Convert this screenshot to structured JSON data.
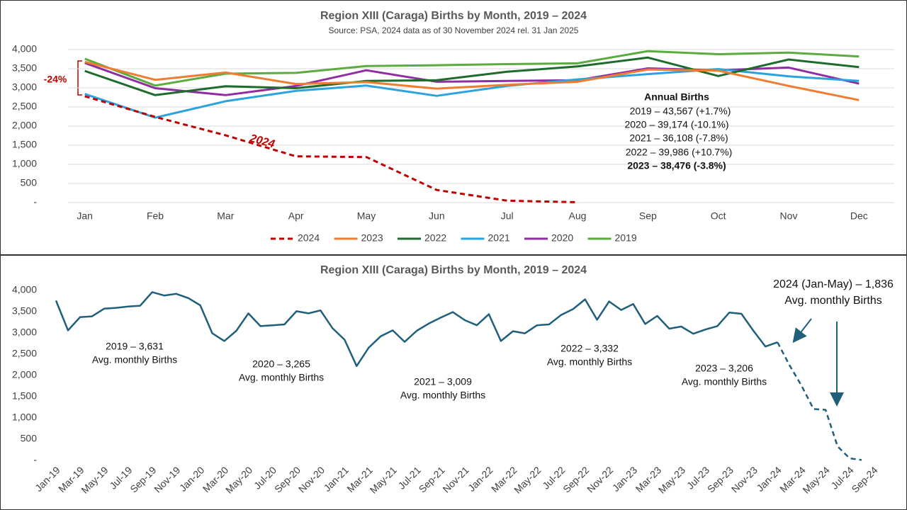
{
  "chart_data": [
    {
      "type": "line",
      "title": "Region XIII (Caraga) Births by Month, 2019 – 2024",
      "subtitle": "Source: PSA, 2024 data as of 30 November 2024 rel. 31 Jan 2025",
      "categories": [
        "Jan",
        "Feb",
        "Mar",
        "Apr",
        "May",
        "Jun",
        "Jul",
        "Aug",
        "Sep",
        "Oct",
        "Nov",
        "Dec"
      ],
      "ylim": [
        0,
        4000
      ],
      "yticks": [
        {
          "value": 0,
          "label": "-"
        },
        500,
        {
          "value": 1000,
          "label": "1,000"
        },
        {
          "value": 1500,
          "label": "1,500"
        },
        {
          "value": 2000,
          "label": "2,000"
        },
        {
          "value": 2500,
          "label": "2,500"
        },
        {
          "value": 3000,
          "label": "3,000"
        },
        {
          "value": 3500,
          "label": "3,500"
        },
        {
          "value": 4000,
          "label": "4,000"
        }
      ],
      "grid": true,
      "legend": "bottom",
      "series": [
        {
          "name": "2024",
          "color": "#c00000",
          "dashed": true,
          "values": [
            2780,
            2240,
            1760,
            1210,
            1190,
            330,
            50,
            10,
            null,
            null,
            null,
            null
          ]
        },
        {
          "name": "2023",
          "color": "#ed7d31",
          "values": [
            3680,
            3210,
            3400,
            3100,
            3150,
            2980,
            3080,
            3160,
            3480,
            3450,
            3050,
            2680
          ]
        },
        {
          "name": "2022",
          "color": "#1f6b2e",
          "values": [
            3440,
            2810,
            3040,
            2990,
            3180,
            3200,
            3420,
            3560,
            3790,
            3310,
            3740,
            3540
          ]
        },
        {
          "name": "2021",
          "color": "#2ba3dc",
          "values": [
            2840,
            2220,
            2650,
            2920,
            3060,
            2790,
            3050,
            3220,
            3360,
            3490,
            3300,
            3180
          ]
        },
        {
          "name": "2020",
          "color": "#8f2ea3",
          "values": [
            3650,
            2990,
            2810,
            3050,
            3460,
            3160,
            3180,
            3200,
            3510,
            3460,
            3530,
            3110
          ]
        },
        {
          "name": "2019",
          "color": "#5aac3e",
          "values": [
            3760,
            3060,
            3370,
            3390,
            3570,
            3590,
            3620,
            3640,
            3960,
            3880,
            3920,
            3820
          ]
        }
      ],
      "annotations": [
        "-24%",
        "2024",
        "Annual Births",
        "2019 – 43,567 (+1.7%)",
        "2020 – 39,174 (-10.1%)",
        "2021 – 36,108 (-7.8%)",
        "2022 – 39,986 (+10.7%)",
        "2023 – 38,476 (-3.8%)"
      ]
    },
    {
      "type": "line",
      "title": "Region XIII (Caraga) Births by Month, 2019 – 2024",
      "categories": [
        "Jan-19",
        null,
        "Mar-19",
        null,
        "May-19",
        null,
        "Jul-19",
        null,
        "Sep-19",
        null,
        "Nov-19",
        null,
        "Jan-20",
        null,
        "Mar-20",
        null,
        "May-20",
        null,
        "Jul-20",
        null,
        "Sep-20",
        null,
        "Nov-20",
        null,
        "Jan-21",
        null,
        "Mar-21",
        null,
        "May-21",
        null,
        "Jul-21",
        null,
        "Sep-21",
        null,
        "Nov-21",
        null,
        "Jan-22",
        null,
        "Mar-22",
        null,
        "May-22",
        null,
        "Jul-22",
        null,
        "Sep-22",
        null,
        "Nov-22",
        null,
        "Jan-23",
        null,
        "Mar-23",
        null,
        "May-23",
        null,
        "Jul-23",
        null,
        "Sep-23",
        null,
        "Nov-23",
        null,
        "Jan-24",
        null,
        "Mar-24",
        null,
        "May-24",
        null,
        "Jul-24",
        null,
        "Sep-24"
      ],
      "ylim": [
        0,
        4000
      ],
      "yticks": [
        {
          "value": 0,
          "label": "-"
        },
        500,
        {
          "value": 1000,
          "label": "1,000"
        },
        {
          "value": 1500,
          "label": "1,500"
        },
        {
          "value": 2000,
          "label": "2,000"
        },
        {
          "value": 2500,
          "label": "2,500"
        },
        {
          "value": 3000,
          "label": "3,000"
        },
        {
          "value": 3500,
          "label": "3,500"
        },
        {
          "value": 4000,
          "label": "4,000"
        }
      ],
      "grid": false,
      "series": [
        {
          "color": "#1f5f7a",
          "values": [
            3760,
            3060,
            3370,
            3390,
            3570,
            3590,
            3620,
            3640,
            3960,
            3880,
            3920,
            3820,
            3650,
            2990,
            2810,
            3050,
            3460,
            3160,
            3180,
            3200,
            3510,
            3460,
            3530,
            3110,
            2840,
            2220,
            2650,
            2920,
            3060,
            2790,
            3050,
            3220,
            3360,
            3490,
            3300,
            3180,
            3440,
            2810,
            3040,
            2990,
            3180,
            3200,
            3420,
            3560,
            3790,
            3310,
            3740,
            3540,
            3680,
            3210,
            3400,
            3100,
            3150,
            2980,
            3080,
            3160,
            3480,
            3450,
            3050,
            2680,
            2780,
            null,
            null,
            null,
            null,
            null,
            null,
            null,
            null
          ]
        },
        {
          "color": "#1f5f7a",
          "dashed": true,
          "values": [
            null,
            null,
            null,
            null,
            null,
            null,
            null,
            null,
            null,
            null,
            null,
            null,
            null,
            null,
            null,
            null,
            null,
            null,
            null,
            null,
            null,
            null,
            null,
            null,
            null,
            null,
            null,
            null,
            null,
            null,
            null,
            null,
            null,
            null,
            null,
            null,
            null,
            null,
            null,
            null,
            null,
            null,
            null,
            null,
            null,
            null,
            null,
            null,
            null,
            null,
            null,
            null,
            null,
            null,
            null,
            null,
            null,
            null,
            null,
            null,
            2780,
            2240,
            1760,
            1210,
            1190,
            330,
            50,
            10,
            null
          ]
        }
      ],
      "annotations": [
        "2019 – 3,631",
        "Avg. monthly Births",
        "2020 – 3,265",
        "Avg. monthly Births",
        "2021 – 3,009",
        "Avg. monthly Births",
        "2022 – 3,332",
        "Avg. monthly Births",
        "2023 – 3,206",
        "Avg. monthly Births",
        "2024 (Jan-May) – 1,836",
        "Avg. monthly Births"
      ]
    }
  ]
}
